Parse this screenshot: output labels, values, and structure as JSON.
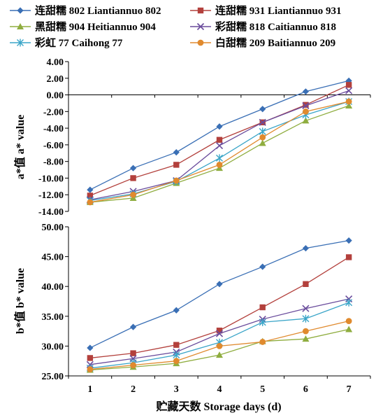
{
  "chart_data": {
    "type": "line",
    "legend_position": "top",
    "xlabel": "贮藏天数 Storage days (d)",
    "x": [
      1,
      2,
      3,
      4,
      5,
      6,
      7
    ],
    "series_styles": [
      {
        "name": "连甜糯 802 Liantiannuo 802",
        "color": "#3a6fb5",
        "marker": "diamond"
      },
      {
        "name": "连甜糯 931 Liantiannuo 931",
        "color": "#b3403c",
        "marker": "square"
      },
      {
        "name": "黑甜糯 904 Heitiannuo 904",
        "color": "#8fad3f",
        "marker": "triangle"
      },
      {
        "name": "彩甜糯 818 Caitiannuo 818",
        "color": "#6a4c9c",
        "marker": "x"
      },
      {
        "name": "彩虹 77 Caihong 77",
        "color": "#3aa5c8",
        "marker": "asterisk"
      },
      {
        "name": "白甜糯 209 Baitiannuo 209",
        "color": "#e08a2e",
        "marker": "circle"
      }
    ],
    "panels": [
      {
        "ylabel": "a*值 a* value",
        "ylim": [
          -14,
          4
        ],
        "yticks": [
          4,
          2,
          0,
          -2,
          -4,
          -6,
          -8,
          -10,
          -12,
          -14
        ],
        "ytick_labels": [
          "4.00",
          "2.00",
          "0.00",
          "-2.00",
          "-4.00",
          "-6.00",
          "-8.00",
          "-10.00",
          "-12.00",
          "-14.00"
        ],
        "zero_axis": true,
        "series": [
          {
            "values": [
              -11.4,
              -8.8,
              -6.9,
              -3.8,
              -1.7,
              0.4,
              1.7
            ]
          },
          {
            "values": [
              -12.1,
              -10.0,
              -8.4,
              -5.4,
              -3.3,
              -1.2,
              1.2
            ]
          },
          {
            "values": [
              -12.9,
              -12.4,
              -10.6,
              -8.8,
              -5.8,
              -3.1,
              -1.3
            ]
          },
          {
            "values": [
              -12.6,
              -11.6,
              -10.3,
              -6.1,
              -3.3,
              -1.3,
              0.5
            ]
          },
          {
            "values": [
              -12.7,
              -11.9,
              -10.4,
              -7.6,
              -4.4,
              -2.4,
              -0.8
            ]
          },
          {
            "values": [
              -12.9,
              -12.0,
              -10.3,
              -8.4,
              -5.1,
              -2.0,
              -0.8
            ]
          }
        ]
      },
      {
        "ylabel": "b*值 b* value",
        "ylim": [
          25,
          50
        ],
        "yticks": [
          50,
          45,
          40,
          35,
          30,
          25
        ],
        "ytick_labels": [
          "50.00",
          "45.00",
          "40.00",
          "35.00",
          "30.00",
          "25.00"
        ],
        "zero_axis": false,
        "series": [
          {
            "values": [
              29.7,
              33.2,
              36.0,
              40.4,
              43.3,
              46.4,
              47.7
            ]
          },
          {
            "values": [
              28.0,
              28.8,
              30.2,
              32.6,
              36.5,
              40.4,
              44.9
            ]
          },
          {
            "values": [
              26.0,
              26.5,
              27.1,
              28.5,
              30.8,
              31.2,
              32.8
            ]
          },
          {
            "values": [
              26.9,
              27.9,
              29.0,
              32.1,
              34.5,
              36.3,
              37.9
            ]
          },
          {
            "values": [
              26.3,
              27.2,
              28.5,
              30.6,
              34.0,
              34.6,
              37.3
            ]
          },
          {
            "values": [
              26.1,
              26.8,
              27.5,
              30.0,
              30.7,
              32.5,
              34.2
            ]
          }
        ]
      }
    ]
  }
}
